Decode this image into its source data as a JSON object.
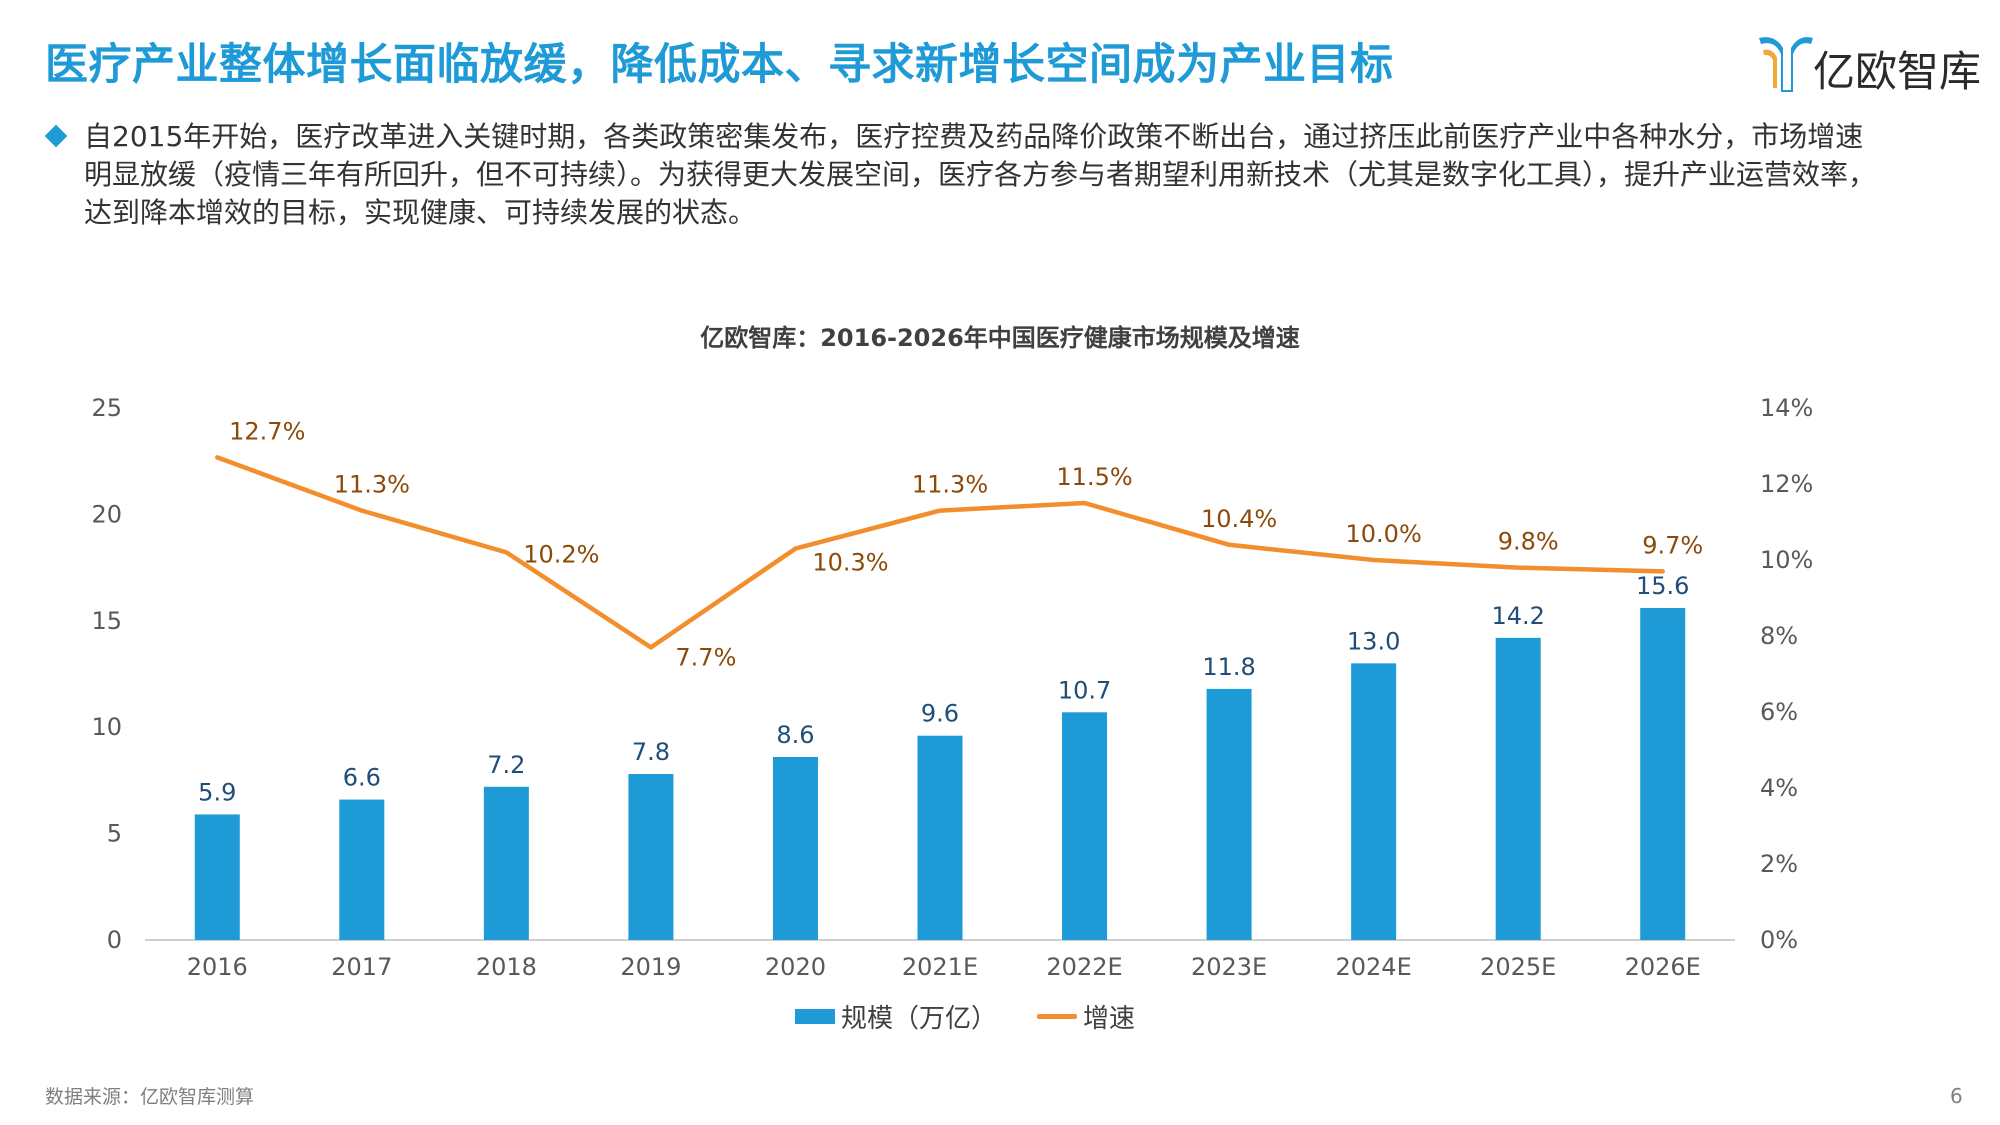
{
  "header": {
    "title": "医疗产业整体增长面临放缓，降低成本、寻求新增长空间成为产业目标",
    "logo_text": "亿欧智库",
    "logo_icon": "yiou-logo-icon"
  },
  "intro": {
    "lines": [
      "自2015年开始，医疗改革进入关键时期，各类政策密集发布，医疗控费及药品降价政策不断出台，通过挤压此前医疗产业中各种水分，市场增速",
      "明显放缓（疫情三年有所回升，但不可持续）。为获得更大发展空间，医疗各方参与者期望利用新技术（尤其是数字化工具），提升产业运营效率，",
      "达到降本增效的目标，实现健康、可持续发展的状态。"
    ]
  },
  "chart_data": {
    "type": "bar+line",
    "title": "亿欧智库：2016-2026年中国医疗健康市场规模及增速",
    "categories": [
      "2016",
      "2017",
      "2018",
      "2019",
      "2020",
      "2021E",
      "2022E",
      "2023E",
      "2024E",
      "2025E",
      "2026E"
    ],
    "series": [
      {
        "name": "规模（万亿）",
        "type": "bar",
        "axis": "left",
        "values": [
          5.9,
          6.6,
          7.2,
          7.8,
          8.6,
          9.6,
          10.7,
          11.8,
          13.0,
          14.2,
          15.6
        ],
        "labels": [
          "5.9",
          "6.6",
          "7.2",
          "7.8",
          "8.6",
          "9.6",
          "10.7",
          "11.8",
          "13.0",
          "14.2",
          "15.6"
        ],
        "color": "#1e9ad6"
      },
      {
        "name": "增速",
        "type": "line",
        "axis": "right",
        "values": [
          12.7,
          11.3,
          10.2,
          7.7,
          10.3,
          11.3,
          11.5,
          10.4,
          10.0,
          9.8,
          9.7
        ],
        "labels": [
          "12.7%",
          "11.3%",
          "10.2%",
          "7.7%",
          "10.3%",
          "11.3%",
          "11.5%",
          "10.4%",
          "10.0%",
          "9.8%",
          "9.7%"
        ],
        "color": "#f28e2b"
      }
    ],
    "y_left": {
      "ticks": [
        "0",
        "5",
        "10",
        "15",
        "20",
        "25"
      ],
      "range": [
        0,
        25
      ]
    },
    "y_right": {
      "ticks": [
        "0%",
        "2%",
        "4%",
        "6%",
        "8%",
        "10%",
        "12%",
        "14%"
      ],
      "range": [
        0,
        14
      ]
    },
    "legend_position": "bottom",
    "grid": false,
    "label_colors": {
      "bar_label": "#1f4e79",
      "line_label": "#8b4a0a",
      "axis": "#595959"
    }
  },
  "footer": {
    "source": "数据来源：亿欧智库测算",
    "page_number": "6"
  }
}
